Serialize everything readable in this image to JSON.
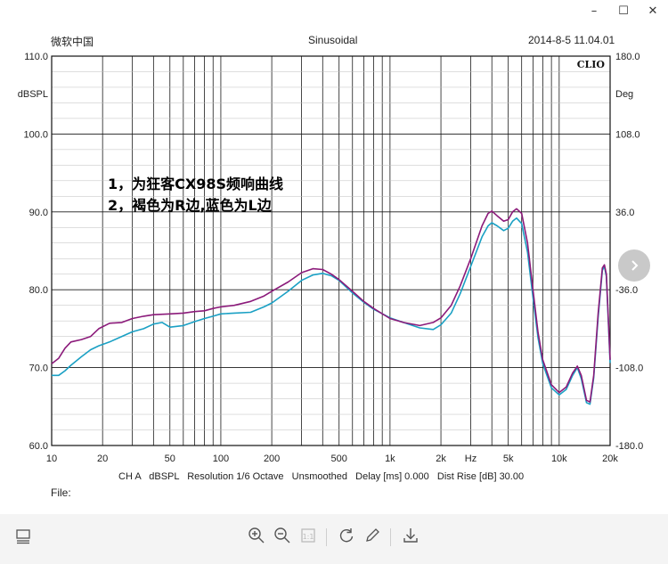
{
  "window": {
    "controls": {
      "minimize": "–",
      "maximize": "☐",
      "close": "✕"
    }
  },
  "header": {
    "left": "微软中国",
    "center": "Sinusoidal",
    "right": "2014-8-5 11.04.01"
  },
  "chart_data": {
    "type": "line",
    "brand": "CLIO",
    "x_scale": "log",
    "xlim": [
      10,
      20000
    ],
    "ylim": [
      60,
      110
    ],
    "ylim_right": [
      -180,
      180
    ],
    "left_unit_label": "dBSPL",
    "right_unit_label": "Deg",
    "y_ticks": [
      "60.0",
      "70.0",
      "80.0",
      "90.0",
      "100.0",
      "110.0"
    ],
    "y_right_ticks": [
      "-180.0",
      "-108.0",
      "-36.0",
      "36.0",
      "108.0",
      "180.0"
    ],
    "x_ticks": [
      {
        "v": 10,
        "label": "10"
      },
      {
        "v": 20,
        "label": "20"
      },
      {
        "v": 50,
        "label": "50"
      },
      {
        "v": 100,
        "label": "100"
      },
      {
        "v": 200,
        "label": "200"
      },
      {
        "v": 500,
        "label": "500"
      },
      {
        "v": 1000,
        "label": "1k"
      },
      {
        "v": 2000,
        "label": "2k"
      },
      {
        "v": 5000,
        "label": "5k"
      },
      {
        "v": 10000,
        "label": "10k"
      },
      {
        "v": 20000,
        "label": "20k"
      }
    ],
    "x_unit_label": "Hz",
    "grid": true,
    "annotations": [
      "1，为狂客CX98S频响曲线",
      "2，褐色为R边,蓝色为L边"
    ],
    "status": "CH A   dBSPL   Resolution 1/6 Octave   Unsmoothed   Delay [ms] 0.000   Dist Rise [dB] 30.00",
    "series": [
      {
        "name": "R",
        "color": "#8b1a7a",
        "points": [
          [
            10,
            70.5
          ],
          [
            11,
            71.2
          ],
          [
            12,
            72.5
          ],
          [
            13,
            73.3
          ],
          [
            15,
            73.6
          ],
          [
            17,
            74.0
          ],
          [
            19,
            75.0
          ],
          [
            22,
            75.7
          ],
          [
            26,
            75.8
          ],
          [
            30,
            76.3
          ],
          [
            35,
            76.6
          ],
          [
            40,
            76.8
          ],
          [
            50,
            76.9
          ],
          [
            60,
            77.0
          ],
          [
            70,
            77.2
          ],
          [
            80,
            77.3
          ],
          [
            90,
            77.6
          ],
          [
            100,
            77.8
          ],
          [
            120,
            78.0
          ],
          [
            150,
            78.5
          ],
          [
            180,
            79.2
          ],
          [
            200,
            79.8
          ],
          [
            250,
            81.0
          ],
          [
            300,
            82.2
          ],
          [
            350,
            82.7
          ],
          [
            400,
            82.6
          ],
          [
            450,
            82.0
          ],
          [
            500,
            81.3
          ],
          [
            600,
            79.8
          ],
          [
            700,
            78.5
          ],
          [
            800,
            77.6
          ],
          [
            1000,
            76.3
          ],
          [
            1200,
            75.8
          ],
          [
            1500,
            75.4
          ],
          [
            1800,
            75.8
          ],
          [
            2000,
            76.4
          ],
          [
            2300,
            78.0
          ],
          [
            2600,
            80.5
          ],
          [
            3000,
            84.0
          ],
          [
            3500,
            88.2
          ],
          [
            3800,
            89.8
          ],
          [
            4000,
            90.1
          ],
          [
            4300,
            89.5
          ],
          [
            4700,
            88.8
          ],
          [
            5000,
            89.0
          ],
          [
            5300,
            90.0
          ],
          [
            5600,
            90.4
          ],
          [
            6000,
            89.8
          ],
          [
            6500,
            86.0
          ],
          [
            7000,
            80.0
          ],
          [
            7500,
            74.5
          ],
          [
            8000,
            71.0
          ],
          [
            9000,
            67.8
          ],
          [
            10000,
            66.8
          ],
          [
            11000,
            67.5
          ],
          [
            12000,
            69.3
          ],
          [
            12800,
            70.2
          ],
          [
            13500,
            69.0
          ],
          [
            14500,
            65.8
          ],
          [
            15200,
            65.6
          ],
          [
            16000,
            69.0
          ],
          [
            17000,
            77.0
          ],
          [
            18000,
            82.8
          ],
          [
            18500,
            83.2
          ],
          [
            19000,
            82.0
          ],
          [
            20000,
            71.0
          ]
        ]
      },
      {
        "name": "L",
        "color": "#1aa0c4",
        "points": [
          [
            10,
            69.0
          ],
          [
            11,
            69.0
          ],
          [
            12,
            69.6
          ],
          [
            13,
            70.3
          ],
          [
            15,
            71.4
          ],
          [
            17,
            72.3
          ],
          [
            19,
            72.8
          ],
          [
            22,
            73.3
          ],
          [
            26,
            74.0
          ],
          [
            30,
            74.6
          ],
          [
            35,
            75.0
          ],
          [
            40,
            75.6
          ],
          [
            45,
            75.8
          ],
          [
            50,
            75.2
          ],
          [
            60,
            75.4
          ],
          [
            70,
            75.9
          ],
          [
            80,
            76.3
          ],
          [
            90,
            76.6
          ],
          [
            100,
            76.9
          ],
          [
            120,
            77.0
          ],
          [
            150,
            77.1
          ],
          [
            180,
            77.8
          ],
          [
            200,
            78.3
          ],
          [
            250,
            79.8
          ],
          [
            300,
            81.2
          ],
          [
            350,
            81.9
          ],
          [
            400,
            82.1
          ],
          [
            450,
            81.8
          ],
          [
            500,
            81.2
          ],
          [
            600,
            79.6
          ],
          [
            700,
            78.4
          ],
          [
            800,
            77.5
          ],
          [
            1000,
            76.4
          ],
          [
            1200,
            75.8
          ],
          [
            1500,
            75.1
          ],
          [
            1800,
            74.9
          ],
          [
            2000,
            75.5
          ],
          [
            2300,
            77.0
          ],
          [
            2600,
            79.5
          ],
          [
            3000,
            83.0
          ],
          [
            3500,
            86.8
          ],
          [
            3800,
            88.2
          ],
          [
            4000,
            88.6
          ],
          [
            4300,
            88.2
          ],
          [
            4700,
            87.6
          ],
          [
            5000,
            87.9
          ],
          [
            5300,
            88.8
          ],
          [
            5600,
            89.2
          ],
          [
            6000,
            88.5
          ],
          [
            6500,
            84.8
          ],
          [
            7000,
            79.0
          ],
          [
            7500,
            73.8
          ],
          [
            8000,
            70.5
          ],
          [
            9000,
            67.4
          ],
          [
            10000,
            66.5
          ],
          [
            11000,
            67.2
          ],
          [
            12000,
            69.0
          ],
          [
            12800,
            70.0
          ],
          [
            13500,
            68.6
          ],
          [
            14500,
            65.5
          ],
          [
            15200,
            65.3
          ],
          [
            16000,
            68.7
          ],
          [
            17000,
            76.5
          ],
          [
            18000,
            82.5
          ],
          [
            18500,
            83.0
          ],
          [
            19000,
            81.7
          ],
          [
            20000,
            70.6
          ]
        ]
      }
    ]
  },
  "file": {
    "label": "File:"
  },
  "toolbar": {
    "items": [
      {
        "name": "thumbnail-icon"
      },
      {
        "name": "zoom-in-icon"
      },
      {
        "name": "zoom-out-icon"
      },
      {
        "name": "actual-size-icon"
      },
      {
        "name": "rotate-icon"
      },
      {
        "name": "edit-icon"
      },
      {
        "name": "download-icon"
      }
    ]
  },
  "next_button": {
    "label": "›"
  }
}
